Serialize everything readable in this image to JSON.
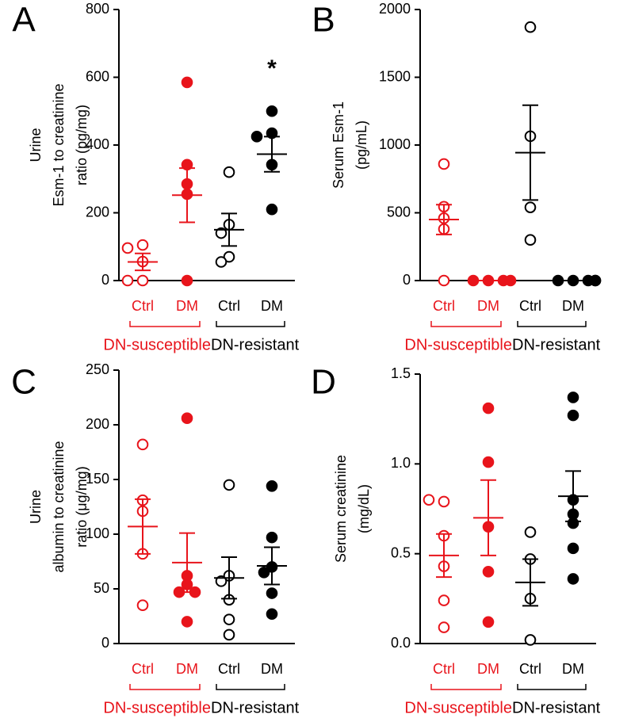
{
  "chart_data": [
    {
      "type": "dot",
      "panel": "A",
      "ylabel": [
        "Urine",
        "Esm-1 to creatinine",
        "ratio (pg/mg)"
      ],
      "categories": [
        "Ctrl",
        "DM",
        "Ctrl",
        "DM"
      ],
      "groups": [
        "DN-susceptible",
        "DN-resistant"
      ],
      "group_colors": [
        "#e8141b",
        "#000000"
      ],
      "filled": [
        false,
        true,
        false,
        true
      ],
      "points": [
        [
          105,
          96,
          56,
          0,
          0
        ],
        [
          585,
          342,
          285,
          255,
          0
        ],
        [
          320,
          165,
          140,
          70,
          55
        ],
        [
          500,
          435,
          425,
          342,
          210
        ]
      ],
      "means": [
        55,
        252,
        150,
        373
      ],
      "sems": [
        25,
        80,
        48,
        52
      ],
      "annotations": [
        {
          "text": "*",
          "category": 3
        }
      ],
      "ylim": [
        0,
        800
      ],
      "yticks": [
        0,
        200,
        400,
        600,
        800
      ]
    },
    {
      "type": "dot",
      "panel": "B",
      "ylabel": [
        "Serum Esm-1",
        "(pg/mL)"
      ],
      "categories": [
        "Ctrl",
        "DM",
        "Ctrl",
        "DM"
      ],
      "groups": [
        "DN-susceptible",
        "DN-resistant"
      ],
      "group_colors": [
        "#e8141b",
        "#000000"
      ],
      "filled": [
        false,
        true,
        false,
        true
      ],
      "points": [
        [
          860,
          545,
          460,
          380,
          0
        ],
        [
          0,
          0,
          0,
          0
        ],
        [
          1870,
          1065,
          540,
          300
        ],
        [
          0,
          0,
          0,
          0,
          0
        ]
      ],
      "means": [
        450,
        0,
        944,
        0
      ],
      "sems": [
        110,
        0,
        350,
        0
      ],
      "ylim": [
        0,
        2000
      ],
      "yticks": [
        0,
        500,
        1000,
        1500,
        2000
      ]
    },
    {
      "type": "dot",
      "panel": "C",
      "ylabel": [
        "Urine",
        "albumin to creatinine",
        "ratio (μg/mg)"
      ],
      "categories": [
        "Ctrl",
        "DM",
        "Ctrl",
        "DM"
      ],
      "groups": [
        "DN-susceptible",
        "DN-resistant"
      ],
      "group_colors": [
        "#e8141b",
        "#000000"
      ],
      "filled": [
        false,
        true,
        false,
        true
      ],
      "points": [
        [
          182,
          131,
          121,
          82,
          35
        ],
        [
          206,
          62,
          54,
          47,
          47,
          20
        ],
        [
          145,
          62,
          57,
          40,
          22,
          8
        ],
        [
          144,
          97,
          70,
          65,
          46,
          27
        ]
      ],
      "means": [
        107,
        74,
        60,
        71
      ],
      "sems": [
        25,
        27,
        19,
        17
      ],
      "ylim": [
        0,
        250
      ],
      "yticks": [
        0,
        50,
        100,
        150,
        200,
        250
      ]
    },
    {
      "type": "dot",
      "panel": "D",
      "ylabel": [
        "Serum creatinine",
        "(mg/dL)"
      ],
      "categories": [
        "Ctrl",
        "DM",
        "Ctrl",
        "DM"
      ],
      "groups": [
        "DN-susceptible",
        "DN-resistant"
      ],
      "group_colors": [
        "#e8141b",
        "#000000"
      ],
      "filled": [
        false,
        true,
        false,
        true
      ],
      "points": [
        [
          0.79,
          0.8,
          0.6,
          0.43,
          0.24,
          0.09
        ],
        [
          1.31,
          1.01,
          0.65,
          0.4,
          0.12
        ],
        [
          0.62,
          0.47,
          0.25,
          0.02
        ],
        [
          1.37,
          1.27,
          0.8,
          0.72,
          0.67,
          0.53,
          0.36
        ]
      ],
      "means": [
        0.49,
        0.7,
        0.34,
        0.82
      ],
      "sems": [
        0.12,
        0.21,
        0.13,
        0.14
      ],
      "ylim": [
        0,
        1.5
      ],
      "yticks": [
        {
          "value": 0,
          "label": "0.0"
        },
        0.5,
        {
          "value": 1,
          "label": "1.0"
        },
        1.5
      ]
    }
  ]
}
